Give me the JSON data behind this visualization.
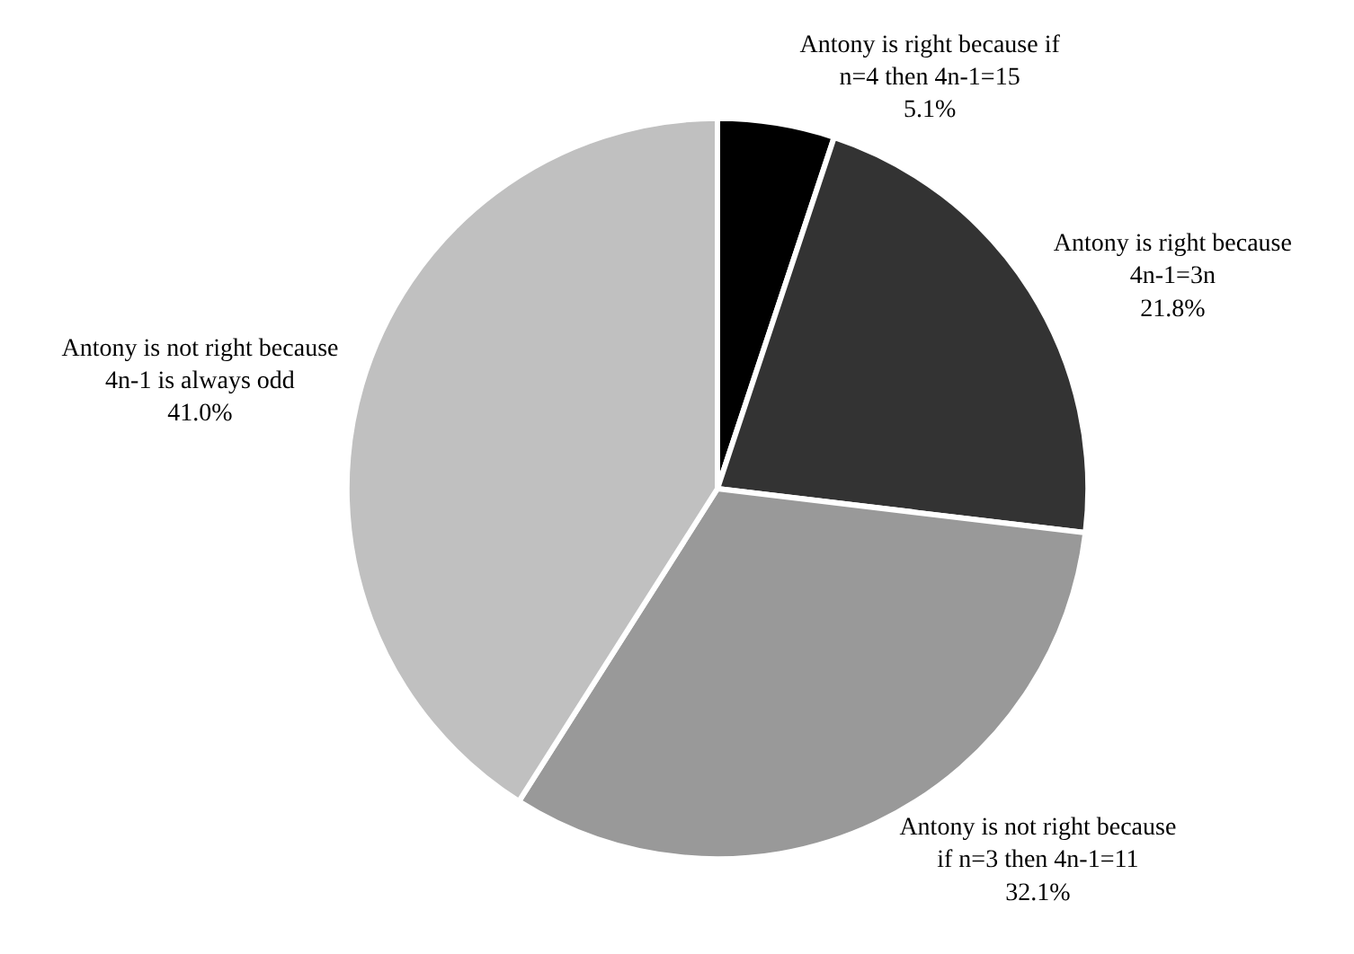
{
  "chart_data": {
    "type": "pie",
    "categories": [
      "Antony is right because if\nn=4 then 4n-1=15",
      "Antony is right because\n4n-1=3n",
      "Antony is not right because\nif n=3 then 4n-1=11",
      "Antony is not right because\n4n-1 is always odd"
    ],
    "values": [
      5.1,
      21.8,
      32.1,
      41.0
    ],
    "value_labels": [
      "5.1%",
      "21.8%",
      "32.1%",
      "41.0%"
    ],
    "colors": [
      "#000000",
      "#333333",
      "#999999",
      "#c0c0c0"
    ],
    "legend": false
  }
}
